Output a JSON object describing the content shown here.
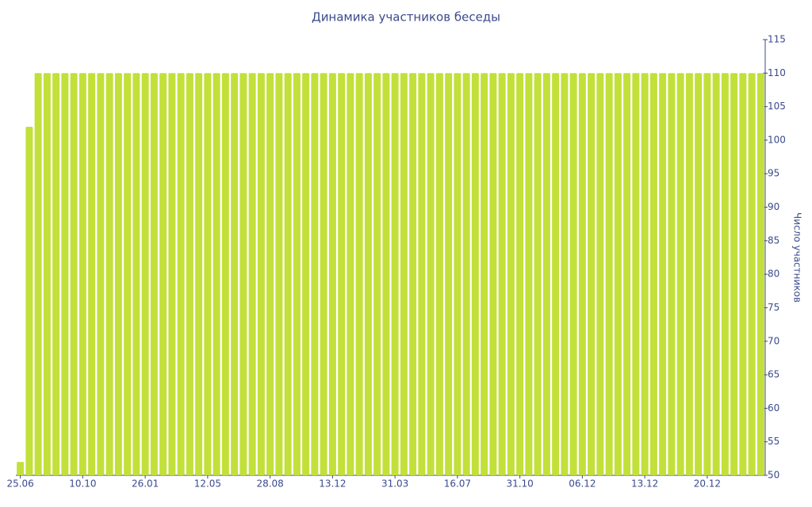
{
  "chart_data": {
    "type": "bar",
    "title": "Динамика участников беседы",
    "y_label": "Число участников",
    "categories": [
      "25.06",
      null,
      null,
      null,
      null,
      null,
      null,
      "10.10",
      null,
      null,
      null,
      null,
      null,
      null,
      "26.01",
      null,
      null,
      null,
      null,
      null,
      null,
      "12.05",
      null,
      null,
      null,
      null,
      null,
      null,
      "28.08",
      null,
      null,
      null,
      null,
      null,
      null,
      "13.12",
      null,
      null,
      null,
      null,
      null,
      null,
      "31.03",
      null,
      null,
      null,
      null,
      null,
      null,
      "16.07",
      null,
      null,
      null,
      null,
      null,
      null,
      "31.10",
      null,
      null,
      null,
      null,
      null,
      null,
      "06.12",
      null,
      null,
      null,
      null,
      null,
      null,
      "13.12",
      null,
      null,
      null,
      null,
      null,
      null,
      "20.12",
      null,
      null,
      null,
      null,
      null,
      null
    ],
    "values": [
      52,
      102,
      110,
      110,
      110,
      110,
      110,
      110,
      110,
      110,
      110,
      110,
      110,
      110,
      110,
      110,
      110,
      110,
      110,
      110,
      110,
      110,
      110,
      110,
      110,
      110,
      110,
      110,
      110,
      110,
      110,
      110,
      110,
      110,
      110,
      110,
      110,
      110,
      110,
      110,
      110,
      110,
      110,
      110,
      110,
      110,
      110,
      110,
      110,
      110,
      110,
      110,
      110,
      110,
      110,
      110,
      110,
      110,
      110,
      110,
      110,
      110,
      110,
      110,
      110,
      110,
      110,
      110,
      110,
      110,
      110,
      110,
      110,
      110,
      110,
      110,
      110,
      110,
      110,
      110,
      110,
      110,
      110,
      110
    ],
    "color": "#c2e03a",
    "ylim": [
      50,
      115
    ],
    "yticks": [
      50,
      55,
      60,
      65,
      70,
      75,
      80,
      85,
      90,
      95,
      100,
      105,
      110,
      115
    ],
    "y_axis_side": "right"
  }
}
